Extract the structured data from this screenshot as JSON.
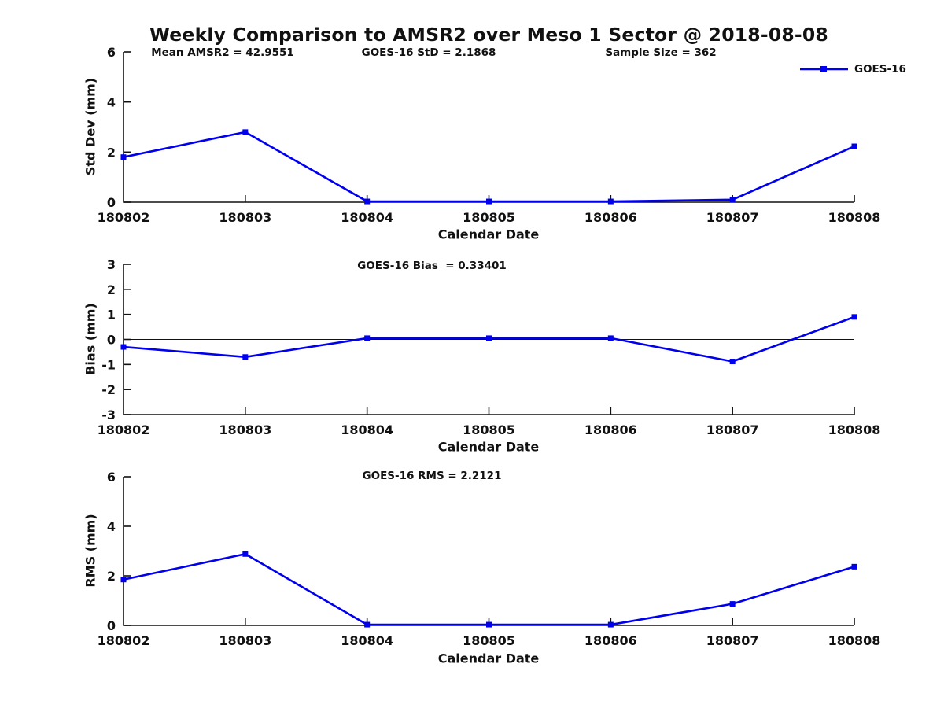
{
  "title": "Weekly Comparison to AMSR2 over Meso 1 Sector @ 2018-08-08",
  "legend": {
    "label": "GOES-16",
    "series_color": "#0000ee",
    "position": "top-right",
    "marker": "square"
  },
  "chart_data": [
    {
      "type": "line",
      "panel": "std-dev",
      "title_annotations": {
        "left": "Mean AMSR2 = 42.9551",
        "center": "GOES-16 StD = 2.1868",
        "right": "Sample Size = 362"
      },
      "categories": [
        "180802",
        "180803",
        "180804",
        "180805",
        "180806",
        "180807",
        "180808"
      ],
      "series": [
        {
          "name": "GOES-16",
          "values": [
            1.8,
            2.8,
            0.03,
            0.03,
            0.03,
            0.1,
            2.23
          ]
        }
      ],
      "xlabel": "Calendar Date",
      "ylabel": "Std Dev (mm)",
      "ylim": [
        0,
        6
      ],
      "yticks": [
        0,
        2,
        4,
        6
      ],
      "grid": false,
      "zero_line": false,
      "line_color": "#0000ee",
      "marker": "square"
    },
    {
      "type": "line",
      "panel": "bias",
      "subtitle": "GOES-16 Bias  = 0.33401",
      "categories": [
        "180802",
        "180803",
        "180804",
        "180805",
        "180806",
        "180807",
        "180808"
      ],
      "series": [
        {
          "name": "GOES-16",
          "values": [
            -0.3,
            -0.7,
            0.05,
            0.05,
            0.05,
            -0.88,
            0.9
          ]
        }
      ],
      "xlabel": "Calendar Date",
      "ylabel": "Bias (mm)",
      "ylim": [
        -3,
        3
      ],
      "yticks": [
        -3,
        -2,
        -1,
        0,
        1,
        2,
        3
      ],
      "grid": false,
      "zero_line": true,
      "line_color": "#0000ee",
      "marker": "square"
    },
    {
      "type": "line",
      "panel": "rms",
      "subtitle": "GOES-16 RMS = 2.2121",
      "categories": [
        "180802",
        "180803",
        "180804",
        "180805",
        "180806",
        "180807",
        "180808"
      ],
      "series": [
        {
          "name": "GOES-16",
          "values": [
            1.85,
            2.88,
            0.03,
            0.03,
            0.03,
            0.87,
            2.37
          ]
        }
      ],
      "xlabel": "Calendar Date",
      "ylabel": "RMS (mm)",
      "ylim": [
        0,
        6
      ],
      "yticks": [
        0,
        2,
        4,
        6
      ],
      "grid": false,
      "zero_line": false,
      "line_color": "#0000ee",
      "marker": "square"
    }
  ]
}
